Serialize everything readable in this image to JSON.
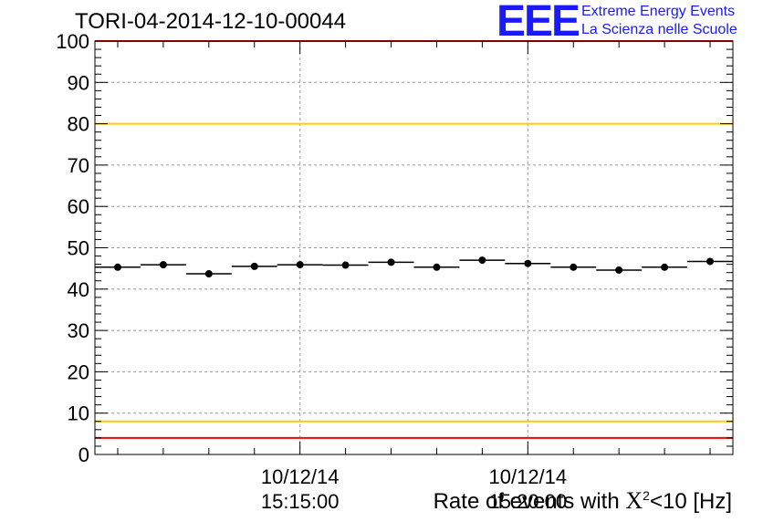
{
  "title": "TORI-04-2014-12-10-00044",
  "logo": {
    "mark": "EEE",
    "line1": "Extreme Energy Events",
    "line2": "La Scienza nelle Scuole",
    "color": "#1a1aff"
  },
  "chart_data": {
    "type": "scatter",
    "title": "TORI-04-2014-12-10-00044",
    "xlabel_prefix": "Rate of events with ",
    "xlabel_symbol": "X",
    "xlabel_sup": "2",
    "xlabel_suffix": "<10 [Hz]",
    "ylabel": "",
    "ylim": [
      0,
      100
    ],
    "yticks": [
      0,
      10,
      20,
      30,
      40,
      50,
      60,
      70,
      80,
      90,
      100
    ],
    "x_time_range": [
      "15:10:30",
      "15:24:30"
    ],
    "x_tick_labels": [
      {
        "date": "10/12/14",
        "time": "15:15:00"
      },
      {
        "date": "10/12/14",
        "time": "15:20:00"
      }
    ],
    "grid": true,
    "points": [
      {
        "x": "15:11:00",
        "y": 45.3
      },
      {
        "x": "15:12:00",
        "y": 45.9
      },
      {
        "x": "15:13:00",
        "y": 43.7
      },
      {
        "x": "15:14:00",
        "y": 45.5
      },
      {
        "x": "15:15:00",
        "y": 45.9
      },
      {
        "x": "15:16:00",
        "y": 45.8
      },
      {
        "x": "15:17:00",
        "y": 46.5
      },
      {
        "x": "15:18:00",
        "y": 45.3
      },
      {
        "x": "15:19:00",
        "y": 47.0
      },
      {
        "x": "15:20:00",
        "y": 46.2
      },
      {
        "x": "15:21:00",
        "y": 45.3
      },
      {
        "x": "15:22:00",
        "y": 44.6
      },
      {
        "x": "15:23:00",
        "y": 45.3
      },
      {
        "x": "15:24:00",
        "y": 46.7
      }
    ],
    "bin_width_seconds": 60,
    "reference_lines": [
      {
        "y": 100,
        "color": "#ff0000"
      },
      {
        "y": 80,
        "color": "#ffcc00"
      },
      {
        "y": 8,
        "color": "#ffcc00"
      },
      {
        "y": 4,
        "color": "#ff0000"
      }
    ]
  }
}
